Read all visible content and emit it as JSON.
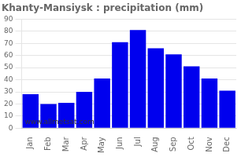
{
  "chart_data": {
    "type": "bar",
    "title": "Khanty-Mansiysk : precipitation (mm)",
    "categories": [
      "Jan",
      "Feb",
      "Mar",
      "Apr",
      "May",
      "Jun",
      "Jul",
      "Aug",
      "Sep",
      "Oct",
      "Nov",
      "Dec"
    ],
    "values": [
      28,
      20,
      21,
      30,
      41,
      71,
      81,
      66,
      61,
      51,
      41,
      31
    ],
    "color": "#0000ee",
    "ylim": [
      0,
      90
    ],
    "yticks": [
      0,
      10,
      20,
      30,
      40,
      50,
      60,
      70,
      80,
      90
    ],
    "grid": true,
    "annotations": [
      "www.allmetsat.com"
    ]
  }
}
